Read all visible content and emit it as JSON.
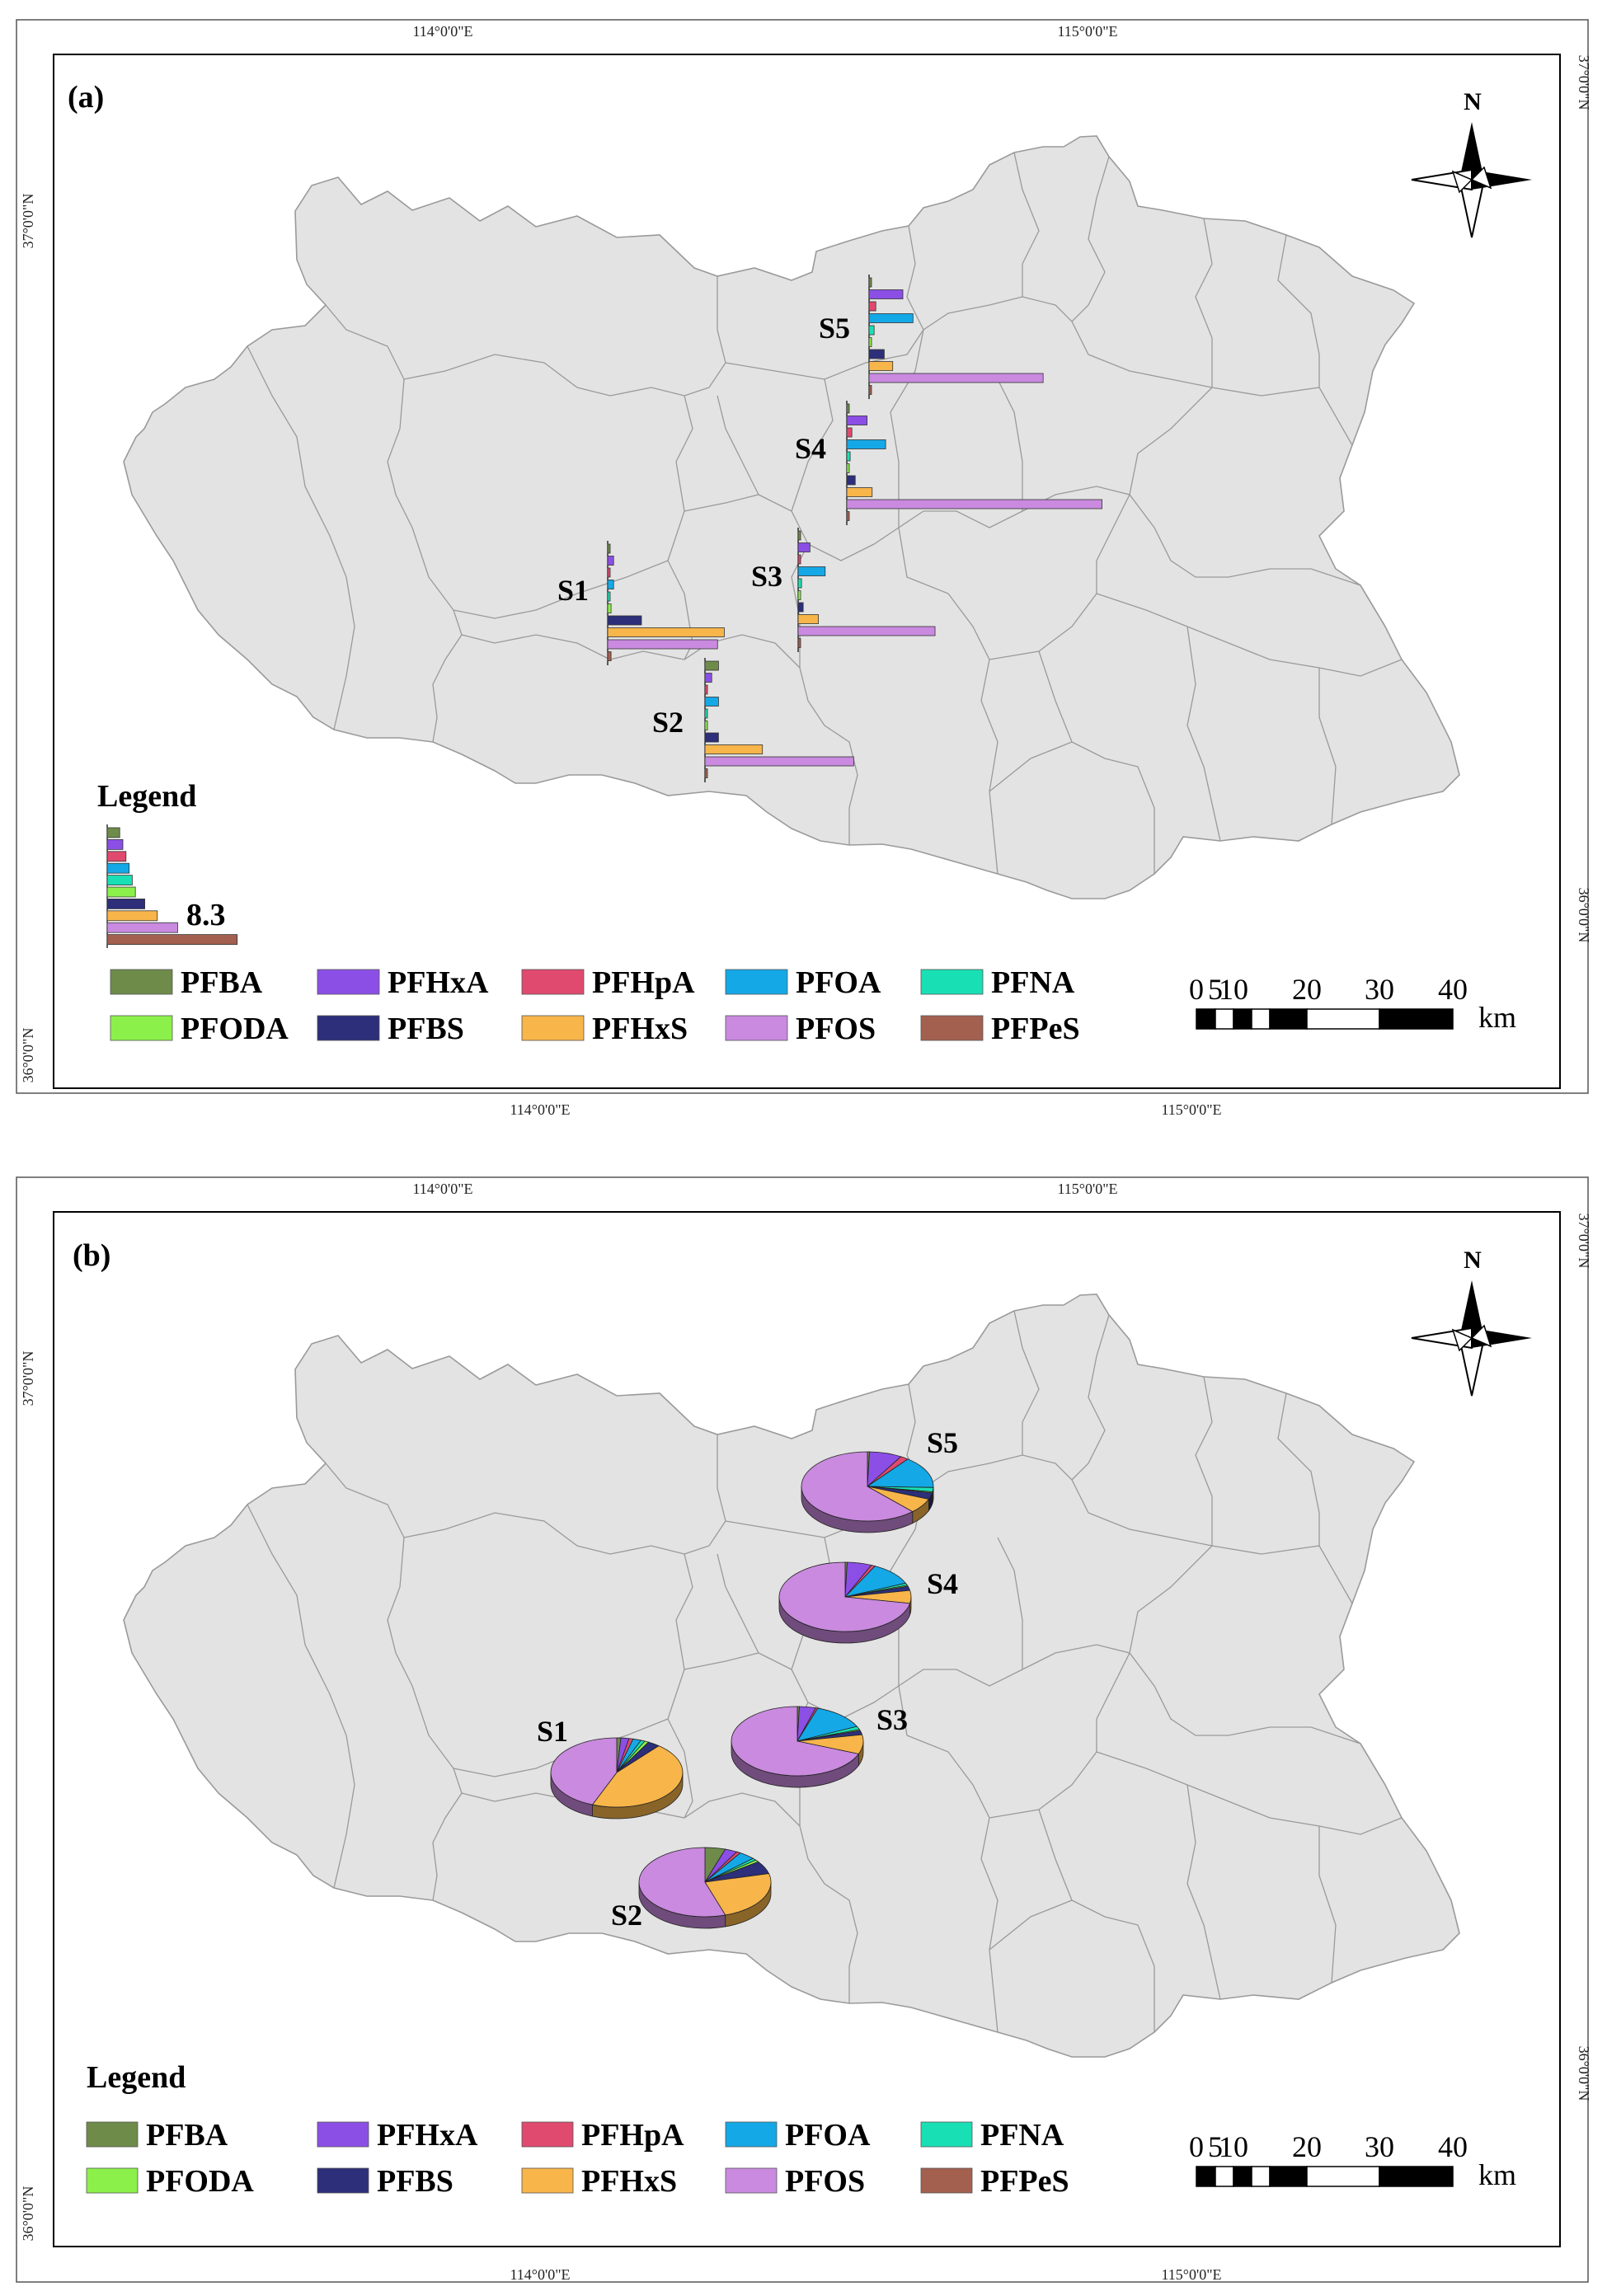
{
  "colors": {
    "PFBA": "#6e8b4a",
    "PFHxA": "#8b4fe6",
    "PFHpA": "#e04a6e",
    "PFOA": "#14a8e6",
    "PFNA": "#19e0b4",
    "PFODA": "#8cf04a",
    "PFBS": "#2d2f7a",
    "PFHxS": "#f7b54a",
    "PFOS": "#c98adf",
    "PFPeS": "#a3604f",
    "land": "#e3e3e3",
    "border": "#9a9a9a"
  },
  "compounds": [
    "PFBA",
    "PFHxA",
    "PFHpA",
    "PFOA",
    "PFNA",
    "PFODA",
    "PFBS",
    "PFHxS",
    "PFOS",
    "PFPeS"
  ],
  "graticule": {
    "lon_top": [
      "114°0'0\"E",
      "115°0'0\"E"
    ],
    "lon_bottom": [
      "114°0'0\"E",
      "115°0'0\"E"
    ],
    "lat_left_upper": "37°0'0\"N",
    "lat_left_lower": "36°0'0\"N",
    "lat_right_upper": "37°0'0\"N",
    "lat_right_lower": "36°0'0\"N"
  },
  "north_label": "N",
  "legend_title": "Legend",
  "scalebar": {
    "ticks": [
      "0",
      "5",
      "10",
      "20",
      "30",
      "40"
    ],
    "unit": "km"
  },
  "panel_a": {
    "label": "(a)",
    "legend_max_value": "8.3",
    "sites": [
      {
        "name": "S1",
        "values": [
          0.05,
          0.35,
          0.05,
          0.35,
          0.05,
          0.2,
          2.0,
          6.9,
          6.5,
          0.2
        ]
      },
      {
        "name": "S2",
        "values": [
          0.8,
          0.4,
          0.1,
          0.8,
          0.1,
          0.1,
          0.8,
          3.4,
          8.8,
          0.05
        ]
      },
      {
        "name": "S3",
        "values": [
          0.05,
          0.7,
          0.05,
          1.6,
          0.2,
          0.1,
          0.3,
          1.2,
          8.1,
          0.05
        ]
      },
      {
        "name": "S4",
        "values": [
          0.05,
          1.2,
          0.3,
          2.3,
          0.2,
          0.1,
          0.5,
          1.5,
          15.1,
          0.05
        ]
      },
      {
        "name": "S5",
        "values": [
          0.05,
          2.0,
          0.4,
          2.6,
          0.3,
          0.1,
          0.9,
          1.4,
          10.3,
          0.05
        ]
      }
    ]
  },
  "panel_b": {
    "label": "(b)",
    "sites": [
      {
        "name": "S1",
        "shares": [
          1,
          2,
          1,
          2,
          1,
          1,
          3,
          45,
          44,
          0
        ]
      },
      {
        "name": "S2",
        "shares": [
          5,
          3,
          1,
          4,
          1,
          1,
          6,
          24,
          55,
          0
        ]
      },
      {
        "name": "S3",
        "shares": [
          0.5,
          4,
          0.5,
          13,
          1.5,
          0.5,
          2,
          9,
          69,
          0
        ]
      },
      {
        "name": "S4",
        "shares": [
          0.5,
          6,
          1,
          11,
          1,
          0.5,
          2,
          6,
          72,
          0
        ]
      },
      {
        "name": "S5",
        "shares": [
          0.5,
          8,
          2,
          15,
          2,
          0.5,
          3,
          7,
          62,
          0
        ]
      }
    ]
  }
}
